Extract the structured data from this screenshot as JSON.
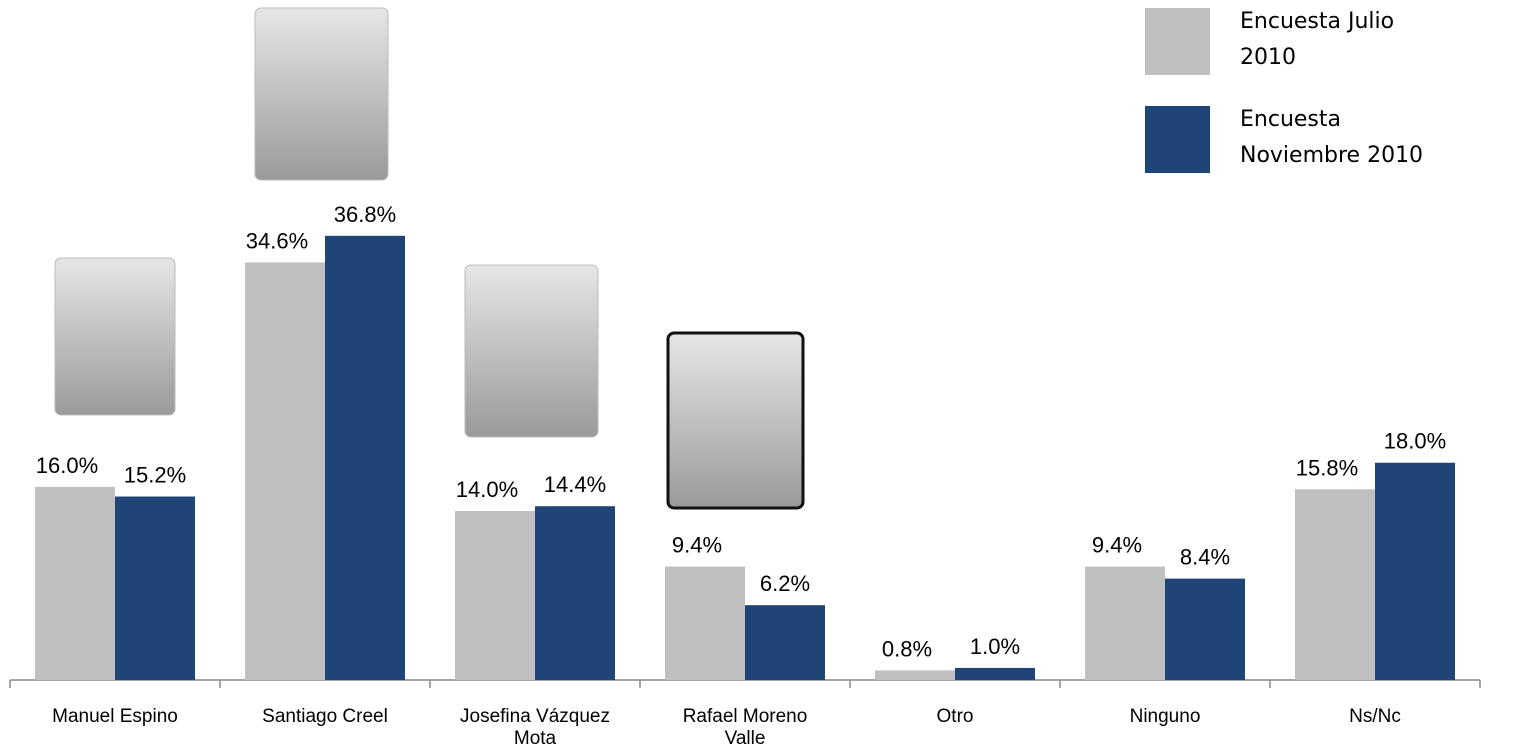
{
  "chart_data": {
    "type": "bar",
    "categories": [
      "Manuel Espino",
      "Santiago Creel",
      "Josefina Vázquez Mota",
      "Rafael Moreno Valle",
      "Otro",
      "Ninguno",
      "Ns/Nc"
    ],
    "series": [
      {
        "name": "Encuesta Julio 2010",
        "color": "#c0c0c0",
        "values": [
          16.0,
          34.6,
          14.0,
          9.4,
          0.8,
          9.4,
          15.8
        ],
        "value_labels": [
          "16.0%",
          "34.6%",
          "14.0%",
          "9.4%",
          "0.8%",
          "9.4%",
          "15.8%"
        ]
      },
      {
        "name": "Encuesta Noviembre 2010",
        "color": "#1f4577",
        "values": [
          15.2,
          36.8,
          14.4,
          6.2,
          1.0,
          8.4,
          18.0
        ],
        "value_labels": [
          "15.2%",
          "36.8%",
          "14.4%",
          "6.2%",
          "1.0%",
          "8.4%",
          "18.0%"
        ]
      }
    ]
  }
}
